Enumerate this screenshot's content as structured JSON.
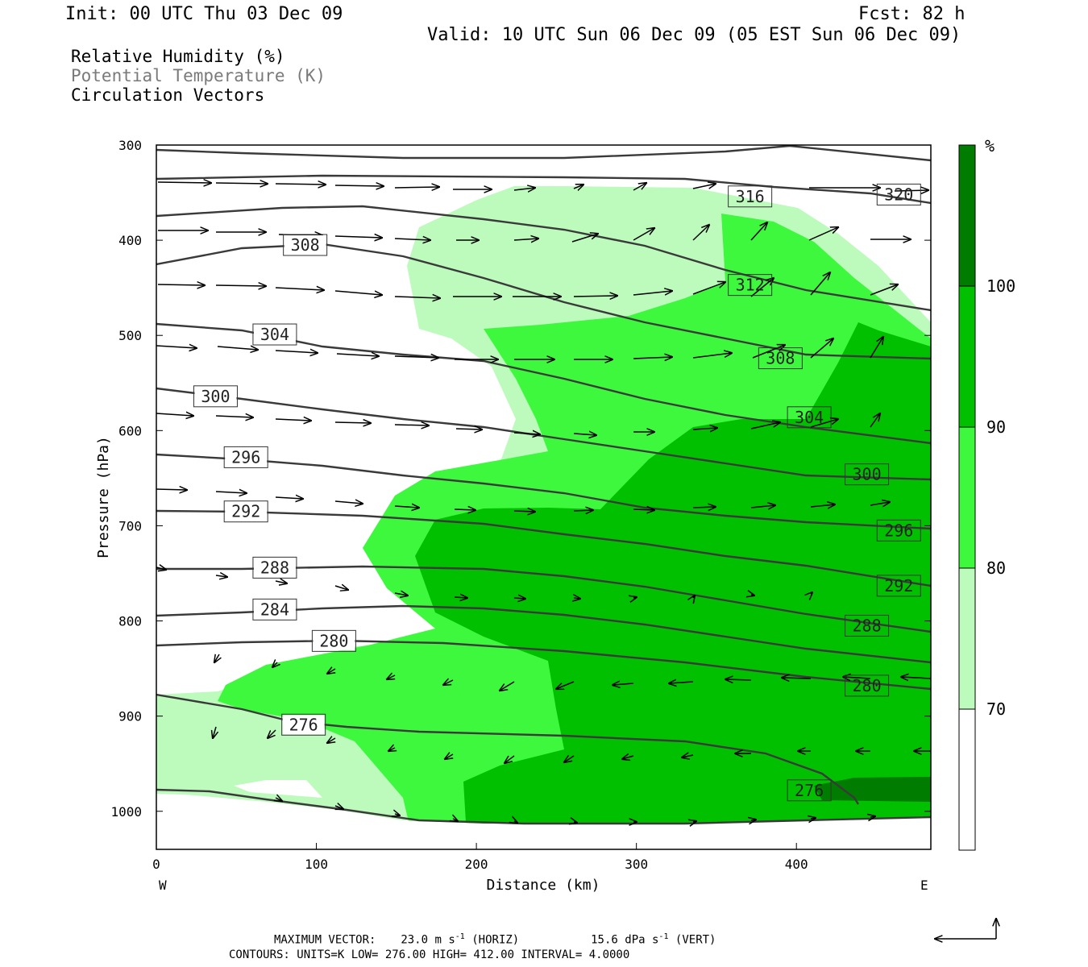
{
  "header": {
    "init": "Init: 00 UTC Thu 03 Dec 09",
    "fcst": "Fcst:   82 h",
    "valid": "Valid: 10 UTC Sun 06 Dec 09 (05 EST Sun 06 Dec 09)"
  },
  "fields": {
    "rh": "Relative Humidity (%)",
    "theta": "Potential Temperature (K)",
    "vectors": "Circulation Vectors"
  },
  "footer": {
    "max_vector_label": "MAXIMUM VECTOR:",
    "horiz_value": "23.0 m s",
    "horiz_exp": "-1",
    "horiz_tag": "(HORIZ)",
    "vert_value": "15.6 dPa s",
    "vert_exp": "-1",
    "vert_tag": "(VERT)",
    "contours": "CONTOURS:  UNITS=K  LOW=  276.00        HIGH=  412.00        INTERVAL=    4.0000"
  },
  "chart_data": {
    "type": "contour-cross-section",
    "xlabel": "Distance (km)",
    "ylabel": "Pressure (hPa)",
    "xlim": [
      0,
      484
    ],
    "ylim": [
      1040,
      300
    ],
    "x_ticks": [
      0,
      100,
      200,
      300,
      400
    ],
    "y_ticks": [
      300,
      400,
      500,
      600,
      700,
      800,
      900,
      1000
    ],
    "x_ends": {
      "left": "W",
      "right": "E"
    },
    "colorbar": {
      "unit": "%",
      "levels": [
        70,
        80,
        90,
        100
      ],
      "colors": [
        "#ffffff",
        "#bdfbbd",
        "#3ef83e",
        "#00c000",
        "#007c00"
      ]
    },
    "theta_labels": [
      {
        "value": "308",
        "x": 93,
        "p": 405
      },
      {
        "value": "304",
        "x": 74,
        "p": 499
      },
      {
        "value": "300",
        "x": 37,
        "p": 564
      },
      {
        "value": "296",
        "x": 56,
        "p": 628
      },
      {
        "value": "292",
        "x": 56,
        "p": 685
      },
      {
        "value": "288",
        "x": 74,
        "p": 744
      },
      {
        "value": "284",
        "x": 74,
        "p": 788
      },
      {
        "value": "280",
        "x": 111,
        "p": 821
      },
      {
        "value": "276",
        "x": 92,
        "p": 909
      },
      {
        "value": "316",
        "x": 371,
        "p": 354
      },
      {
        "value": "320",
        "x": 464,
        "p": 352
      },
      {
        "value": "312",
        "x": 371,
        "p": 447
      },
      {
        "value": "308",
        "x": 390,
        "p": 524
      },
      {
        "value": "304",
        "x": 408,
        "p": 586
      },
      {
        "value": "300",
        "x": 444,
        "p": 646
      },
      {
        "value": "296",
        "x": 464,
        "p": 705
      },
      {
        "value": "292",
        "x": 464,
        "p": 763
      },
      {
        "value": "288",
        "x": 444,
        "p": 805
      },
      {
        "value": "280",
        "x": 444,
        "p": 868
      },
      {
        "value": "276",
        "x": 408,
        "p": 978
      }
    ]
  },
  "corner_icon": "reference-vector-arrow-icon"
}
